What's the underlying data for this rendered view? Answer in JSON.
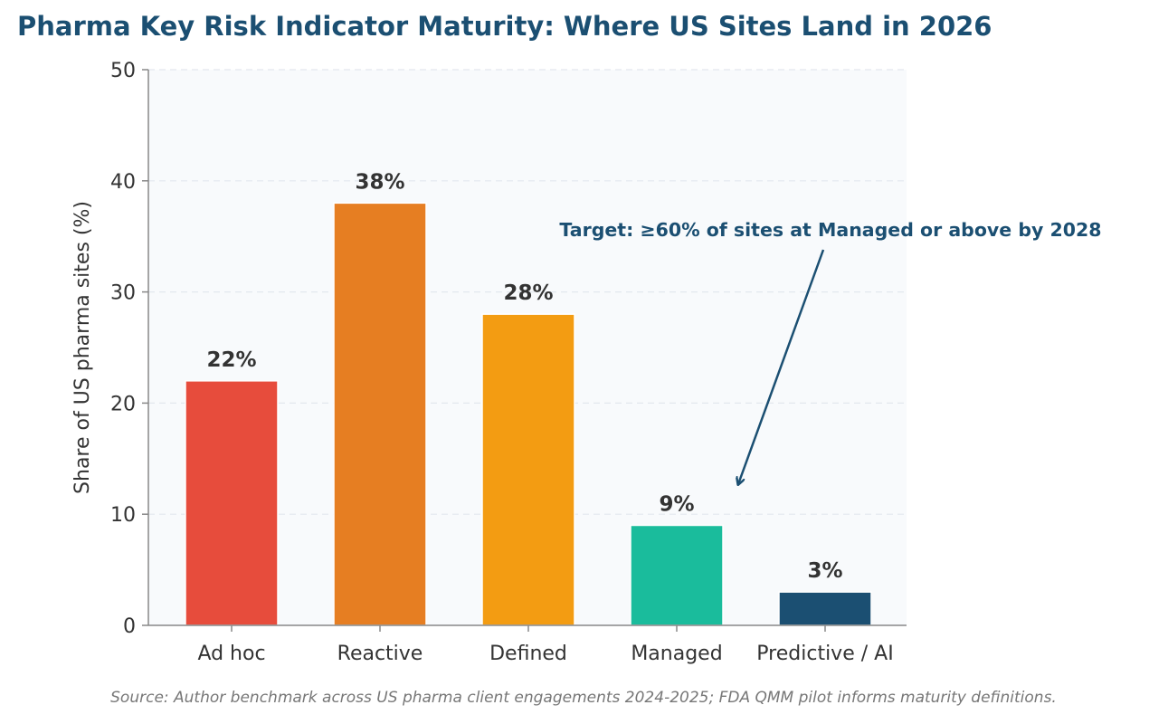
{
  "chart_data": {
    "type": "bar",
    "title": "Pharma Key Risk Indicator Maturity: Where US Sites Land in 2026",
    "xlabel": "",
    "ylabel": "Share of US pharma sites (%)",
    "ylim": [
      0,
      50
    ],
    "yticks": [
      0,
      10,
      20,
      30,
      40,
      50
    ],
    "grid": "y-dashed",
    "categories": [
      "Ad hoc",
      "Reactive",
      "Defined",
      "Managed",
      "Predictive / AI"
    ],
    "values": [
      22,
      38,
      28,
      9,
      3
    ],
    "value_labels": [
      "22%",
      "38%",
      "28%",
      "9%",
      "3%"
    ],
    "colors": [
      "#e74c3c",
      "#e67e22",
      "#f39c12",
      "#1abc9c",
      "#1b4f72"
    ],
    "annotation": {
      "text": "Target: ≥60% of sites at Managed or above by 2028",
      "color": "#1b4f72",
      "points_to_category": "Managed"
    }
  },
  "source_note": "Source: Author benchmark across US pharma client engagements 2024-2025; FDA QMM pilot informs maturity definitions."
}
